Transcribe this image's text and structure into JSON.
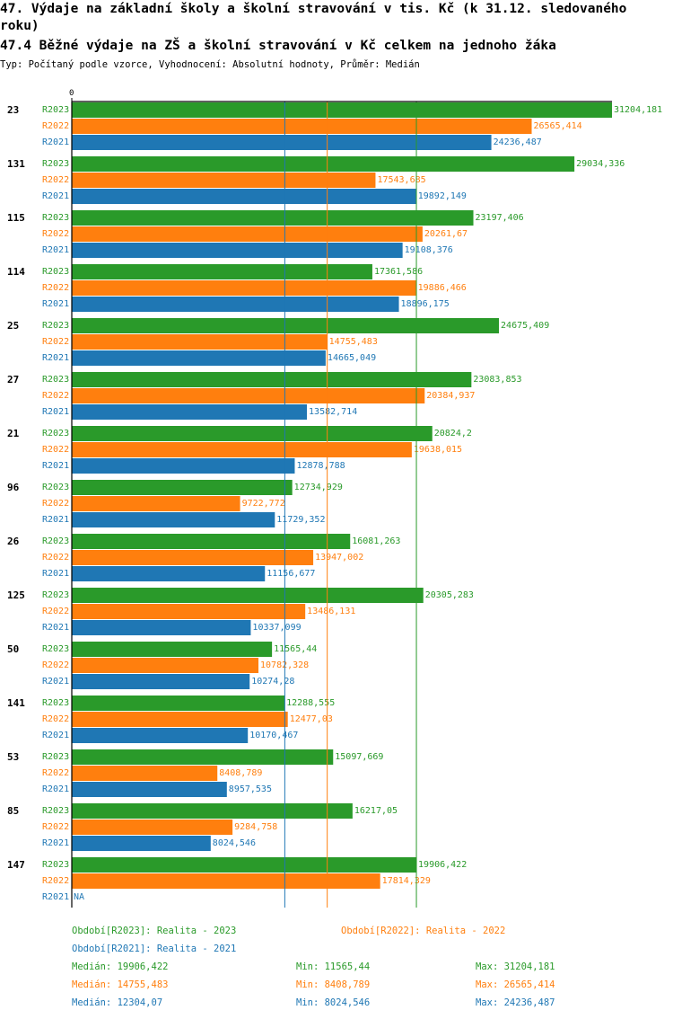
{
  "header": {
    "title_line1": "47. Výdaje na základní školy a školní stravování v tis. Kč (k 31.12. sledovaného",
    "title_line2": "roku)",
    "title_line3": "47.4 Běžné výdaje na ZŠ a školní stravování v Kč celkem na jednoho žáka",
    "subtitle": "Typ: Počítaný podle vzorce, Vyhodnocení: Absolutní hodnoty, Průměr: Medián"
  },
  "colors": {
    "R2023": "#2a9a2a",
    "R2022": "#ff7f0e",
    "R2021": "#1f77b4"
  },
  "chart_data": {
    "type": "bar",
    "orientation": "horizontal",
    "x_zero_label": "0",
    "xlim": [
      0,
      31204.181
    ],
    "categories": [
      "23",
      "131",
      "115",
      "114",
      "25",
      "27",
      "21",
      "96",
      "26",
      "125",
      "50",
      "141",
      "53",
      "85",
      "147"
    ],
    "series": [
      {
        "name": "R2023",
        "values": [
          31204.181,
          29034.336,
          23197.406,
          17361.586,
          24675.409,
          23083.853,
          20824.2,
          12734.929,
          16081.263,
          20305.283,
          11565.44,
          12288.555,
          15097.669,
          16217.05,
          19906.422
        ],
        "labels": [
          "31204,181",
          "29034,336",
          "23197,406",
          "17361,586",
          "24675,409",
          "23083,853",
          "20824,2",
          "12734,929",
          "16081,263",
          "20305,283",
          "11565,44",
          "12288,555",
          "15097,669",
          "16217,05",
          "19906,422"
        ]
      },
      {
        "name": "R2022",
        "values": [
          26565.414,
          17543.685,
          20261.67,
          19886.466,
          14755.483,
          20384.937,
          19638.015,
          9722.772,
          13947.002,
          13486.131,
          10782.328,
          12477.03,
          8408.789,
          9284.758,
          17814.329
        ],
        "labels": [
          "26565,414",
          "17543,685",
          "20261,67",
          "19886,466",
          "14755,483",
          "20384,937",
          "19638,015",
          "9722,772",
          "13947,002",
          "13486,131",
          "10782,328",
          "12477,03",
          "8408,789",
          "9284,758",
          "17814,329"
        ]
      },
      {
        "name": "R2021",
        "values": [
          24236.487,
          19892.149,
          19108.376,
          18896.175,
          14665.049,
          13582.714,
          12878.788,
          11729.352,
          11156.677,
          10337.099,
          10274.28,
          10170.467,
          8957.535,
          8024.546,
          null
        ],
        "labels": [
          "24236,487",
          "19892,149",
          "19108,376",
          "18896,175",
          "14665,049",
          "13582,714",
          "12878,788",
          "11729,352",
          "11156,677",
          "10337,099",
          "10274,28",
          "10170,467",
          "8957,535",
          "8024,546",
          "NA"
        ]
      }
    ],
    "reference_lines": [
      {
        "series": "R2021",
        "value": 12304.07
      },
      {
        "series": "R2022",
        "value": 14755.483
      },
      {
        "series": "R2023",
        "value": 19906.422
      }
    ]
  },
  "legend": {
    "r2023": "Období[R2023]: Realita - 2023",
    "r2022": "Období[R2022]: Realita - 2022",
    "r2021": "Období[R2021]: Realita - 2021"
  },
  "stats": {
    "r2023": {
      "median": "Medián: 19906,422",
      "min": "Min: 11565,44",
      "max": "Max: 31204,181"
    },
    "r2022": {
      "median": "Medián: 14755,483",
      "min": "Min: 8408,789",
      "max": "Max: 26565,414"
    },
    "r2021": {
      "median": "Medián: 12304,07",
      "min": "Min: 8024,546",
      "max": "Max: 24236,487"
    }
  }
}
